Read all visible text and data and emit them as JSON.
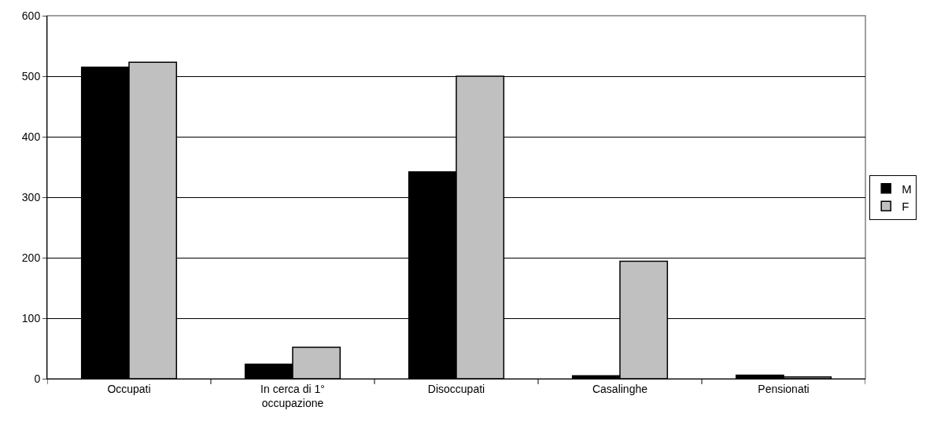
{
  "chart_data": {
    "type": "bar",
    "categories": [
      "Occupati",
      "In cerca di 1° occupazione",
      "Disoccupati",
      "Casalinghe",
      "Pensionati"
    ],
    "series": [
      {
        "name": "M",
        "color": "#000000",
        "values": [
          515,
          24,
          342,
          5,
          6
        ]
      },
      {
        "name": "F",
        "color": "#c0c0c0",
        "values": [
          523,
          52,
          500,
          194,
          3
        ]
      }
    ],
    "ylim": [
      0,
      600
    ],
    "yticks": [
      0,
      100,
      200,
      300,
      400,
      500,
      600
    ],
    "grid": "y",
    "legend": "right"
  }
}
